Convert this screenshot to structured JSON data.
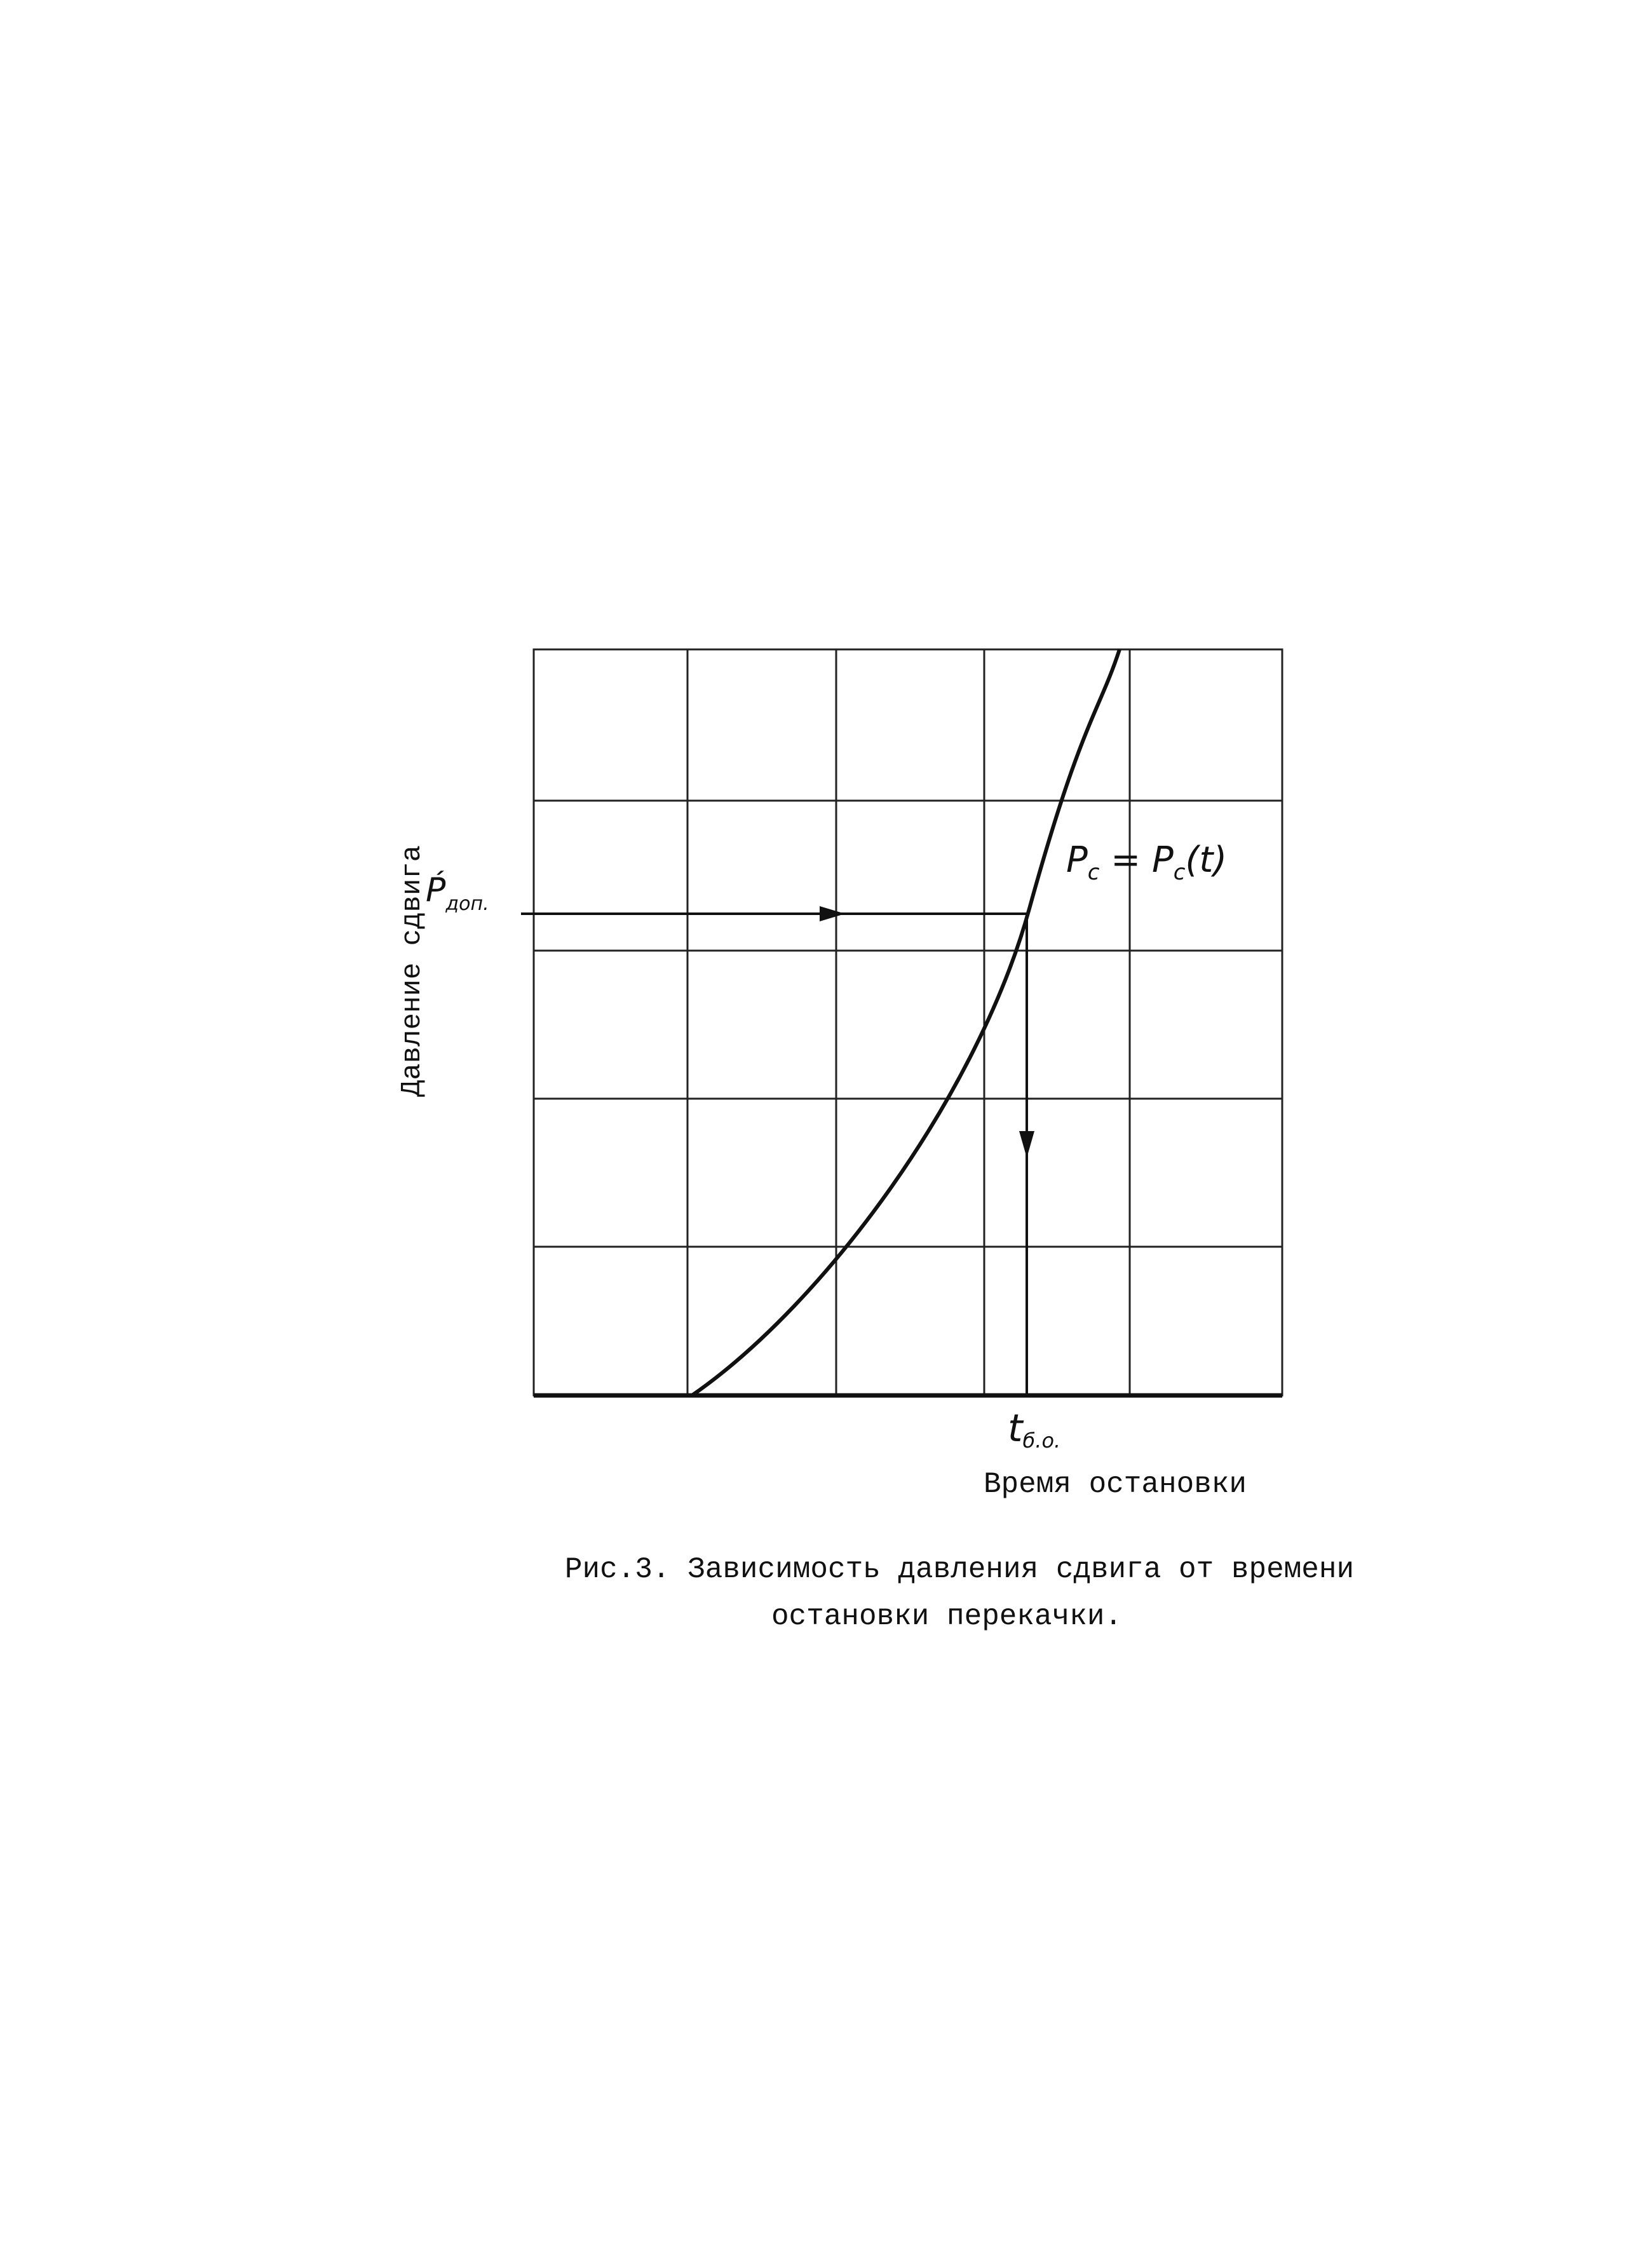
{
  "figure": {
    "y_axis_label": "Давление сдвига",
    "x_axis_label": "Время остановки",
    "p_label": {
      "main": "Ṕ",
      "sub": "доп."
    },
    "t_label": {
      "main": "t",
      "sub": "б.о."
    },
    "curve_label": {
      "lhs": "P",
      "lhs_sub": "c",
      "eq": " = ",
      "rhs": "P",
      "rhs_sub": "c",
      "arg": "(t)"
    },
    "caption": [
      "Рис.3. Зависимость давления сдвига от времени",
      "остановки перекачки."
    ]
  }
}
